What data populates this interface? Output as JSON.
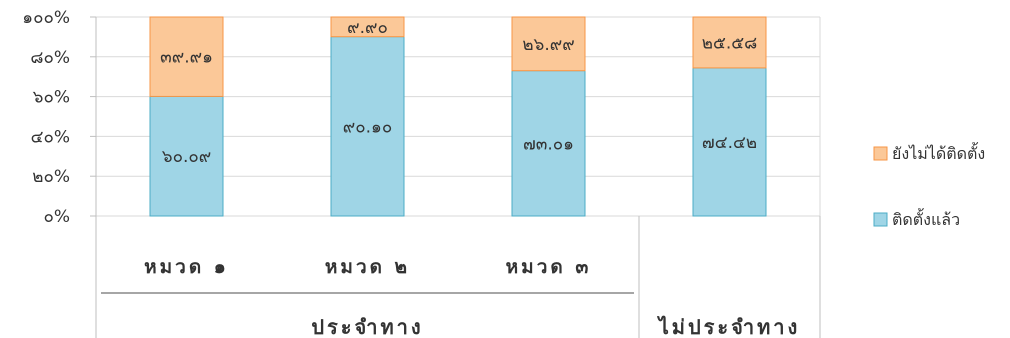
{
  "chart_data": {
    "type": "bar",
    "stacked": true,
    "percent_stacked": true,
    "categories": [
      "หมวด ๑",
      "หมวด ๒",
      "หมวด ๓",
      ""
    ],
    "groups": [
      {
        "label": "ประจำทาง",
        "categories": [
          0,
          1,
          2
        ]
      },
      {
        "label": "ไม่ประจำทาง",
        "categories": [
          3
        ]
      }
    ],
    "series": [
      {
        "name": "ติดตั้งแล้ว",
        "values": [
          60.09,
          90.1,
          73.01,
          74.42
        ],
        "labels": [
          "๖๐.๐๙",
          "๙๐.๑๐",
          "๗๓.๐๑",
          "๗๔.๔๒"
        ],
        "color": "#9fd5e6"
      },
      {
        "name": "ยังไม่ได้ติดตั้ง",
        "values": [
          39.91,
          9.9,
          26.99,
          25.58
        ],
        "labels": [
          "๓๙.๙๑",
          "๙.๙๐",
          "๒๖.๙๙",
          "๒๕.๕๘"
        ],
        "color": "#fbc898"
      }
    ],
    "yticks": [
      "๐%",
      "๒๐%",
      "๔๐%",
      "๖๐%",
      "๘๐%",
      "๑๐๐%"
    ],
    "ylim": [
      0,
      100
    ],
    "grid": true,
    "legend_position": "right"
  }
}
